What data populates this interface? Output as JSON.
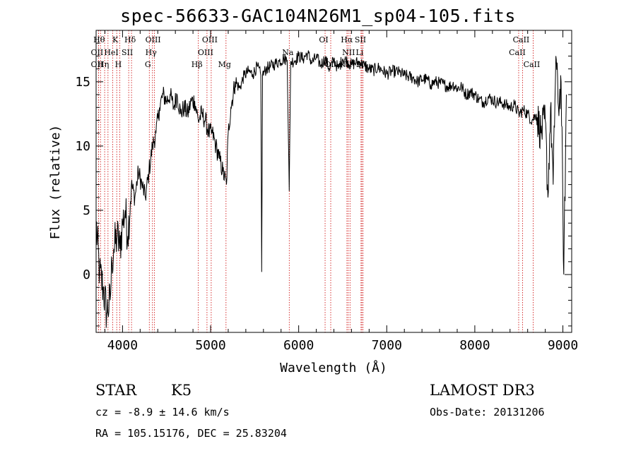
{
  "chart_data": {
    "type": "line",
    "title": "spec-56633-GAC104N26M1_sp04-105.fits",
    "xlabel": "Wavelength (Å)",
    "ylabel": "Flux (relative)",
    "xlim": [
      3700,
      9100
    ],
    "ylim": [
      -4.5,
      19
    ],
    "xticks": [
      4000,
      5000,
      6000,
      7000,
      8000,
      9000
    ],
    "xtick_labels": [
      "4000",
      "5000",
      "6000",
      "7000",
      "8000",
      "9000"
    ],
    "yticks": [
      0,
      5,
      10,
      15
    ],
    "ytick_labels": [
      "0",
      "5",
      "10",
      "15"
    ],
    "grid": false,
    "legend": "none",
    "series": [
      {
        "name": "spectrum",
        "x": [
          3700,
          3740,
          3780,
          3820,
          3860,
          3880,
          3900,
          3940,
          3970,
          4000,
          4030,
          4060,
          4100,
          4140,
          4180,
          4220,
          4260,
          4300,
          4340,
          4380,
          4420,
          4460,
          4500,
          4540,
          4580,
          4620,
          4660,
          4700,
          4740,
          4780,
          4820,
          4860,
          4900,
          4940,
          4980,
          5020,
          5060,
          5100,
          5140,
          5180,
          5200,
          5230,
          5280,
          5330,
          5380,
          5430,
          5480,
          5530,
          5570,
          5580,
          5590,
          5630,
          5680,
          5730,
          5780,
          5830,
          5870,
          5893,
          5910,
          5950,
          6000,
          6050,
          6100,
          6150,
          6200,
          6250,
          6300,
          6350,
          6400,
          6450,
          6500,
          6550,
          6600,
          6650,
          6700,
          6750,
          6800,
          6850,
          6900,
          6950,
          7000,
          7050,
          7100,
          7150,
          7200,
          7250,
          7300,
          7350,
          7400,
          7450,
          7500,
          7550,
          7600,
          7650,
          7700,
          7750,
          7800,
          7850,
          7900,
          7950,
          8000,
          8050,
          8100,
          8150,
          8200,
          8250,
          8300,
          8350,
          8400,
          8450,
          8500,
          8550,
          8600,
          8650,
          8700,
          8750,
          8800,
          8830,
          8860,
          8890,
          8920,
          8950,
          8980,
          9010,
          9040
        ],
        "values": [
          4,
          0,
          -1,
          -3,
          -2,
          1,
          2,
          3,
          2,
          4,
          5,
          3,
          7,
          6,
          8,
          7,
          6,
          8,
          10,
          11,
          13,
          14,
          13.5,
          14,
          13,
          14,
          12.5,
          13,
          12.5,
          13.5,
          13.5,
          12,
          12.5,
          12,
          11,
          11,
          10,
          9,
          8,
          7,
          11,
          13,
          15,
          14.5,
          15.5,
          15.8,
          15.6,
          16.2,
          15.5,
          0.2,
          15.5,
          16,
          16.2,
          16.4,
          16.6,
          16.8,
          16.7,
          6.5,
          16.6,
          16.6,
          17,
          16.8,
          17.2,
          16.5,
          16.9,
          16.3,
          16.8,
          16,
          16.7,
          16,
          16.8,
          16.6,
          16.3,
          16.5,
          16.5,
          16.2,
          16,
          15.9,
          16.1,
          15.9,
          15.6,
          15.8,
          15.8,
          15.7,
          15.5,
          15.4,
          15.3,
          15,
          15.2,
          15.2,
          14.8,
          15,
          14.9,
          14.8,
          14.6,
          14.8,
          14.5,
          14.6,
          14,
          14.2,
          14,
          13.6,
          13.4,
          13.8,
          13.6,
          13.4,
          13.4,
          13.2,
          13,
          13.2,
          12.5,
          12.8,
          12.5,
          12,
          12.5,
          11,
          12,
          6,
          13,
          7,
          17,
          13,
          15,
          0,
          14
        ]
      }
    ],
    "lines": [
      {
        "x": 3750,
        "label": "Hθ",
        "row": 1
      },
      {
        "x": 3727,
        "label": "OII",
        "row": 2
      },
      {
        "x": 3727,
        "label": "OII",
        "row": 3
      },
      {
        "x": 3797,
        "label": "Hη",
        "row": 3
      },
      {
        "x": 3835,
        "label": "",
        "row": 0
      },
      {
        "x": 3889,
        "label": "HeI",
        "row": 2
      },
      {
        "x": 3934,
        "label": "K",
        "row": 1
      },
      {
        "x": 3968,
        "label": "H",
        "row": 3
      },
      {
        "x": 4070,
        "label": "SII",
        "row": 2
      },
      {
        "x": 4102,
        "label": "Hδ",
        "row": 1
      },
      {
        "x": 4304,
        "label": "G",
        "row": 3
      },
      {
        "x": 4340,
        "label": "Hγ",
        "row": 2
      },
      {
        "x": 4363,
        "label": "OIII",
        "row": 1
      },
      {
        "x": 4861,
        "label": "Hβ",
        "row": 3
      },
      {
        "x": 4959,
        "label": "OIII",
        "row": 2
      },
      {
        "x": 5007,
        "label": "OIII",
        "row": 1
      },
      {
        "x": 5175,
        "label": "Mg",
        "row": 3
      },
      {
        "x": 5893,
        "label": "Na",
        "row": 2
      },
      {
        "x": 6300,
        "label": "OI",
        "row": 1
      },
      {
        "x": 6364,
        "label": "OI",
        "row": 3
      },
      {
        "x": 6548,
        "label": "NII",
        "row": 3
      },
      {
        "x": 6563,
        "label": "Hα",
        "row": 1
      },
      {
        "x": 6583,
        "label": "NII",
        "row": 2
      },
      {
        "x": 6708,
        "label": "Li",
        "row": 2
      },
      {
        "x": 6717,
        "label": "SII",
        "row": 1
      },
      {
        "x": 6731,
        "label": "SII",
        "row": 3
      },
      {
        "x": 8498,
        "label": "CaII",
        "row": 2
      },
      {
        "x": 8542,
        "label": "CaII",
        "row": 1
      },
      {
        "x": 8662,
        "label": "CaII",
        "row": 3
      }
    ]
  },
  "info": {
    "object_type": "STAR",
    "subclass": "K5",
    "survey": "LAMOST DR3",
    "redshift": "cz = -8.9 ± 14.6 km/s",
    "obs_date": "Obs-Date: 20131206",
    "coords": "RA = 105.15176, DEC =  25.83204"
  },
  "colors": {
    "spectrum": "#000000",
    "line_marker": "#cc0000",
    "axes": "#000000",
    "background": "#ffffff"
  }
}
